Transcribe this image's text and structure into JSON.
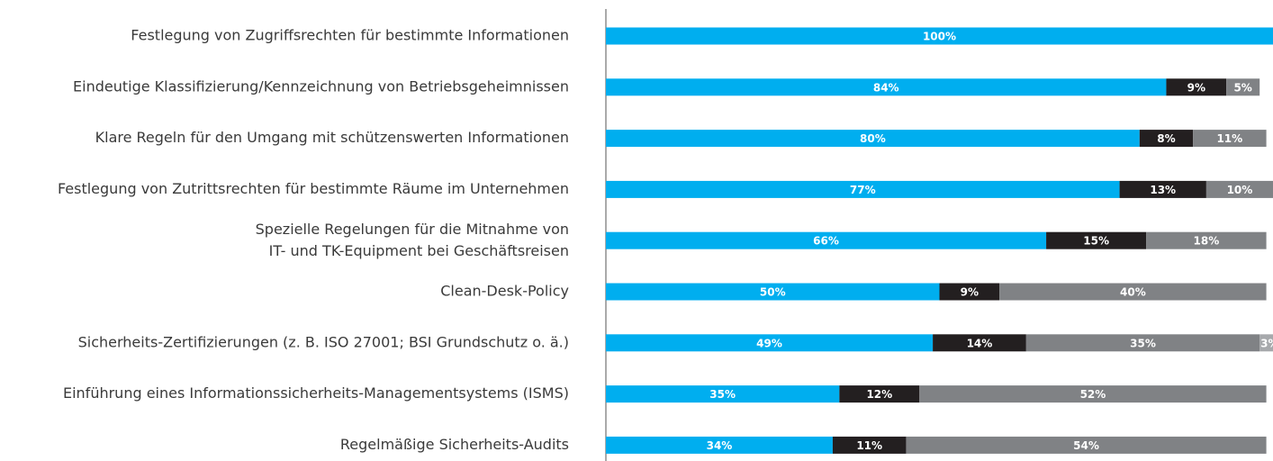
{
  "chart_data": {
    "type": "stacked_barh",
    "categories": [
      "Festlegung von Zugriffsrechten für bestimmte Informationen",
      "Eindeutige Klassifizierung/Kennzeichnung von Betriebsgeheimnissen",
      "Klare Regeln für den Umgang mit schützenswerten Informationen",
      "Festlegung von Zutrittsrechten für bestimmte Räume im Unternehmen",
      "Spezielle Regelungen für die Mitnahme von\nIT- und TK-Equipment bei Geschäftsreisen",
      "Clean-Desk-Policy",
      "Sicherheits-Zertifizierungen (z. B. ISO 27001; BSI Grundschutz o. ä.)",
      "Einführung eines Informationssicherheits-Managementsystems (ISMS)",
      "Regelmäßige Sicherheits-Audits"
    ],
    "series": [
      {
        "color": "#00aeef",
        "values": [
          100,
          84,
          80,
          77,
          66,
          50,
          49,
          35,
          34
        ],
        "value_labels": [
          "100%",
          "84%",
          "80%",
          "77%",
          "66%",
          "50%",
          "49%",
          "35%",
          "34%"
        ]
      },
      {
        "color": "#231f20",
        "values": [
          null,
          9,
          8,
          13,
          15,
          9,
          14,
          12,
          11
        ],
        "value_labels": [
          null,
          "9%",
          "8%",
          "13%",
          "15%",
          "9%",
          "14%",
          "12%",
          "11%"
        ]
      },
      {
        "color": "#808285",
        "values": [
          null,
          5,
          11,
          10,
          18,
          40,
          35,
          52,
          54
        ],
        "value_labels": [
          null,
          "5%",
          "11%",
          "10%",
          "18%",
          "40%",
          "35%",
          "52%",
          "54%"
        ]
      },
      {
        "color": "#a7a9ac",
        "values": [
          null,
          null,
          null,
          null,
          null,
          null,
          3,
          null,
          null
        ],
        "value_labels": [
          null,
          null,
          null,
          null,
          null,
          null,
          "3%",
          null,
          null
        ]
      }
    ],
    "xlim": [
      0,
      100
    ]
  }
}
